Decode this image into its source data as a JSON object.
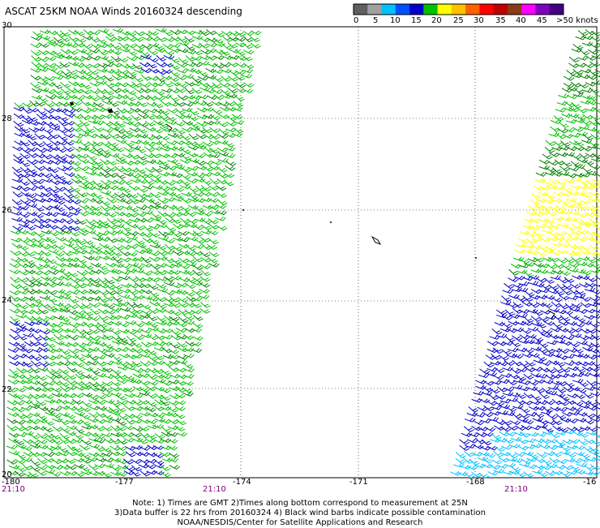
{
  "title": "ASCAT 25KM NOAA Winds 20160324 descending",
  "legend": {
    "labels": [
      "0",
      "5",
      "10",
      "15",
      "20",
      "25",
      "30",
      "35",
      "40",
      "45",
      ">50 knots"
    ],
    "colors": [
      "#606060",
      "#a0a0a0",
      "#00c0ff",
      "#0050ff",
      "#0000c8",
      "#00c000",
      "#ffff00",
      "#ffc000",
      "#ff6000",
      "#ff0000",
      "#c00000",
      "#8b3a1a",
      "#ff00ff",
      "#8000c0",
      "#400080"
    ]
  },
  "axes": {
    "lat_labels": [
      "30",
      "28",
      "26",
      "24",
      "22",
      "20"
    ],
    "lon_labels": [
      "-180",
      "-177",
      "-174",
      "-171",
      "-168",
      "-16"
    ],
    "time_labels": [
      "21:10",
      "21:10",
      "21:10"
    ]
  },
  "notes": [
    "Note: 1) Times are GMT 2)Times along bottom correspond to measurement at 25N",
    "3)Data buffer is 22 hrs from 20160324 4) Black wind barbs indicate possible contamination",
    "NOAA/NESDIS/Center for Satellite Applications and Research"
  ],
  "colors": {
    "green": "#00c000",
    "dark_green": "#008000",
    "blue": "#0000c8",
    "yellow": "#ffff00",
    "cyan": "#00c0ff",
    "black": "#000000"
  }
}
